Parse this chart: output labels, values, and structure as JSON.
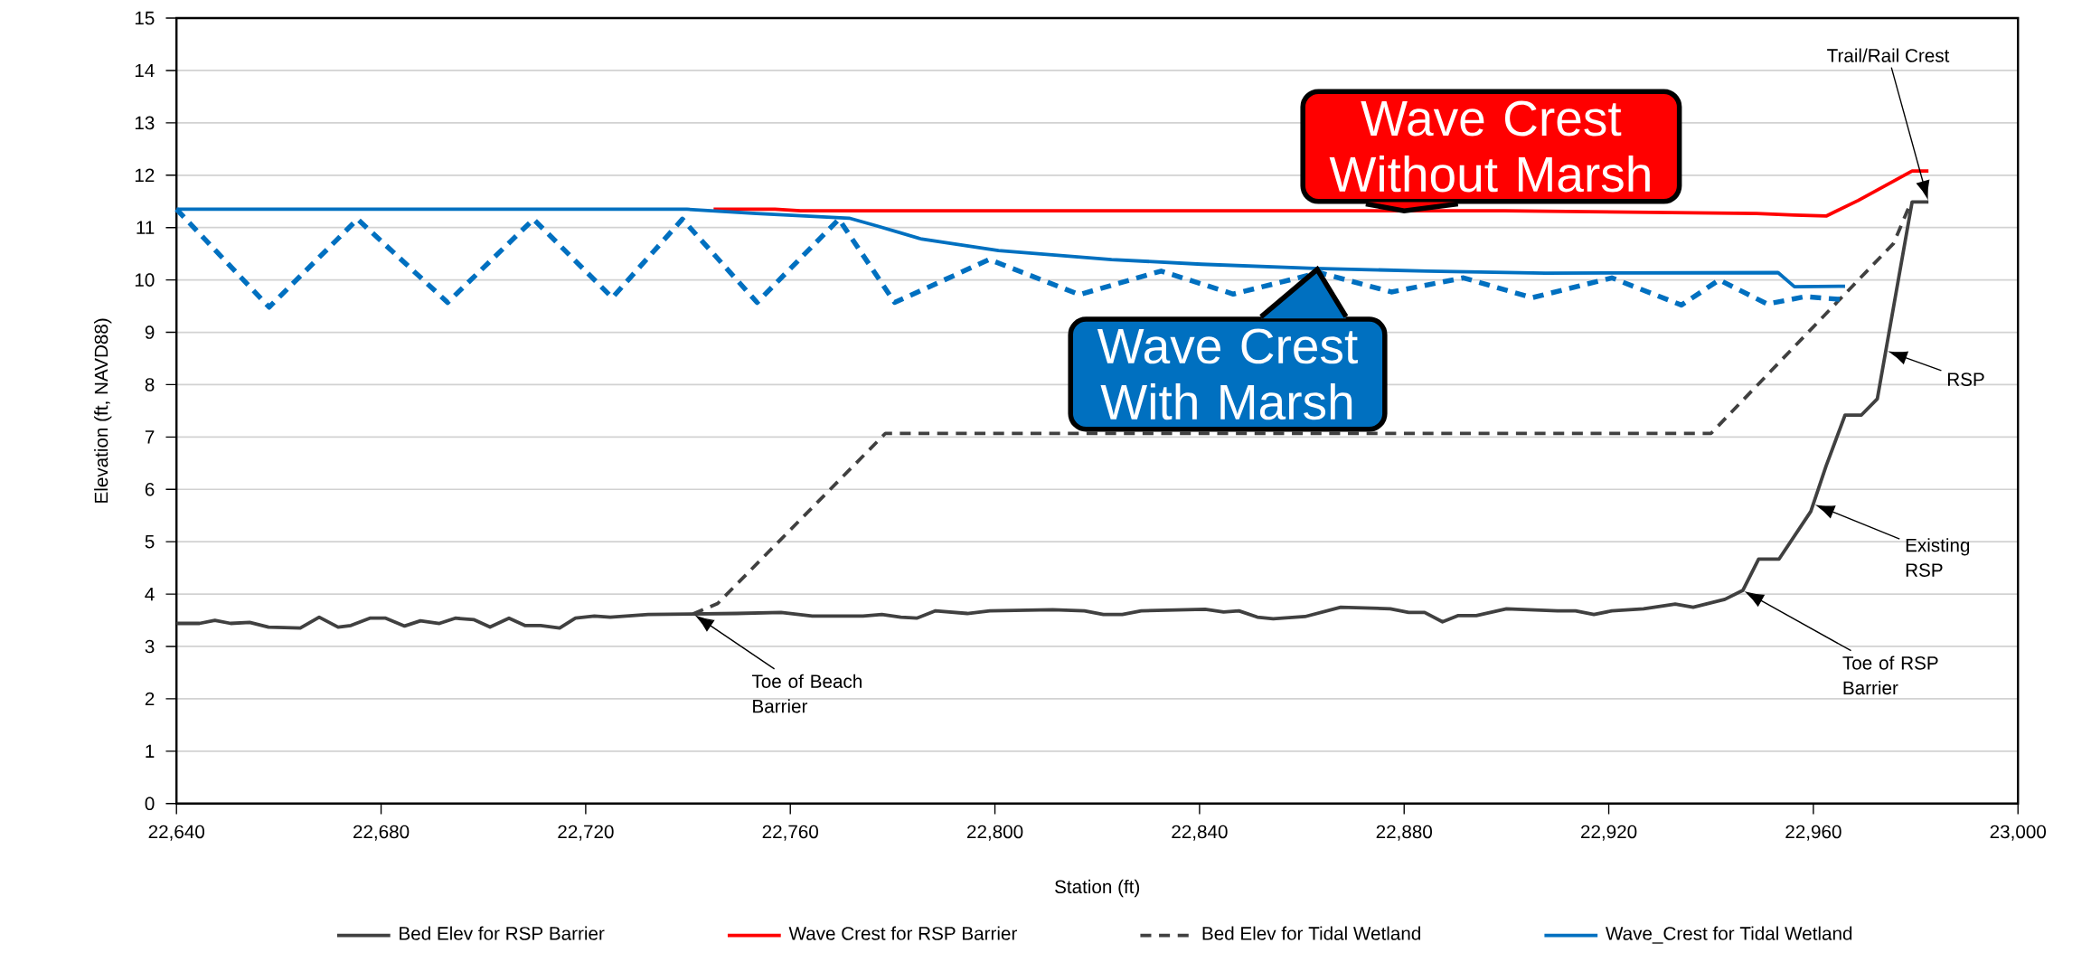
{
  "chart_data": {
    "type": "line",
    "xlabel": "Station (ft)",
    "ylabel": "Elevation (ft, NAVD88)",
    "xlim": [
      22640,
      23000
    ],
    "ylim": [
      0,
      15
    ],
    "xticks": [
      {
        "value": 22640,
        "label": "22,640"
      },
      {
        "value": 22680,
        "label": "22,680"
      },
      {
        "value": 22720,
        "label": "22,720"
      },
      {
        "value": 22760,
        "label": "22,760"
      },
      {
        "value": 22800,
        "label": "22,800"
      },
      {
        "value": 22840,
        "label": "22,840"
      },
      {
        "value": 22880,
        "label": "22,880"
      },
      {
        "value": 22920,
        "label": "22,920"
      },
      {
        "value": 22960,
        "label": "22,960"
      },
      {
        "value": 23000,
        "label": "23,000"
      }
    ],
    "yticks": [
      0,
      1,
      2,
      3,
      4,
      5,
      6,
      7,
      8,
      9,
      10,
      11,
      12,
      13,
      14,
      15
    ],
    "grid": "y",
    "legend": "bottom",
    "series": [
      {
        "name": "Bed Elev for RSP Barrier",
        "color": "#404040",
        "line_style": "solid",
        "x": [
          22640,
          22644.5,
          22647.5,
          22650.6,
          22654.3,
          22658,
          22664.2,
          22667.9,
          22671.6,
          22674.1,
          22677.8,
          22680.9,
          22684.6,
          22687.7,
          22691.4,
          22694.5,
          22698.2,
          22701.3,
          22705,
          22708.1,
          22711.2,
          22714.9,
          22718,
          22721.7,
          22724.8,
          22732.2,
          22749.5,
          22758.2,
          22764.3,
          22774.2,
          22777.9,
          22781.6,
          22784.7,
          22788.4,
          22794.6,
          22799,
          22811.3,
          22817.5,
          22821.2,
          22824.9,
          22828.6,
          22841.1,
          22844.7,
          22847.7,
          22851.3,
          22854.4,
          22860.6,
          22867.6,
          22877.3,
          22880.9,
          22884,
          22887.5,
          22890.6,
          22894.1,
          22900,
          22910,
          22913.5,
          22917.1,
          22920.6,
          22926.8,
          22933,
          22936.5,
          22942.7,
          22946.2,
          22949.3,
          22953.3,
          22959.5,
          22962.5,
          22966.2,
          22969.4,
          22972.5,
          22979.3,
          22982.5
        ],
        "values": [
          3.44,
          3.44,
          3.5,
          3.44,
          3.46,
          3.37,
          3.35,
          3.56,
          3.37,
          3.4,
          3.54,
          3.54,
          3.39,
          3.49,
          3.44,
          3.54,
          3.51,
          3.37,
          3.54,
          3.4,
          3.4,
          3.35,
          3.54,
          3.58,
          3.56,
          3.61,
          3.63,
          3.65,
          3.58,
          3.58,
          3.61,
          3.56,
          3.54,
          3.68,
          3.63,
          3.68,
          3.7,
          3.68,
          3.61,
          3.61,
          3.68,
          3.71,
          3.66,
          3.68,
          3.56,
          3.53,
          3.57,
          3.75,
          3.72,
          3.65,
          3.65,
          3.47,
          3.59,
          3.59,
          3.72,
          3.68,
          3.68,
          3.61,
          3.68,
          3.72,
          3.81,
          3.75,
          3.9,
          4.07,
          4.67,
          4.67,
          5.58,
          6.45,
          7.42,
          7.42,
          7.73,
          11.49,
          11.49
        ]
      },
      {
        "name": "Wave Crest for RSP Barrier",
        "color": "#ff0000",
        "line_style": "solid",
        "x": [
          22745,
          22757,
          22762,
          22899.6,
          22948.9,
          22956.3,
          22962.5,
          22968.8,
          22979.3,
          22982.5
        ],
        "values": [
          11.35,
          11.35,
          11.32,
          11.32,
          11.27,
          11.24,
          11.22,
          11.52,
          12.08,
          12.08
        ]
      },
      {
        "name": "Bed Elev for Tidal Wetland",
        "color": "#404040",
        "line_style": "dashed",
        "x": [
          22741,
          22745.8,
          22778.6,
          22940,
          22975.7,
          22978.8
        ],
        "values": [
          3.62,
          3.82,
          7.07,
          7.07,
          10.7,
          11.42
        ]
      },
      {
        "color": "#0070c0",
        "line_style": "dashed",
        "x": [
          22640,
          22658.1,
          22675.4,
          22693,
          22709.8,
          22725.2,
          22738.9,
          22753.5,
          22769.5,
          22780.4,
          22798.9,
          22816.5,
          22832.5,
          22846.6,
          22863.4,
          22877.5,
          22891.6,
          22905,
          22920.6,
          22934.2,
          22941.6,
          22951,
          22958.3,
          22965.2
        ],
        "values": [
          11.35,
          9.48,
          11.16,
          9.57,
          11.16,
          9.66,
          11.16,
          9.57,
          11.16,
          9.57,
          10.39,
          9.72,
          10.17,
          9.73,
          10.14,
          9.77,
          10.04,
          9.66,
          10.04,
          9.52,
          10.0,
          9.54,
          9.68,
          9.63
        ]
      },
      {
        "name": "Wave_Crest for Tidal Wetland",
        "color": "#0070c0",
        "line_style": "solid",
        "x": [
          22640,
          22739.8,
          22753.4,
          22771.5,
          22777,
          22785.7,
          22800.7,
          22822.8,
          22840.4,
          22862.5,
          22884.6,
          22907.6,
          22953.1,
          22956.3,
          22966.2
        ],
        "values": [
          11.35,
          11.35,
          11.27,
          11.18,
          11.03,
          10.78,
          10.56,
          10.39,
          10.3,
          10.22,
          10.17,
          10.13,
          10.14,
          9.87,
          9.88
        ]
      }
    ],
    "annotations": [
      {
        "text": "Wave Crest Without Marsh",
        "x": 22880,
        "y": 11.32
      },
      {
        "text": "Wave Crest With Marsh",
        "x": 22863,
        "y": 10.2
      },
      "Trail/Rail Crest",
      "RSP",
      "Existing RSP",
      "Toe of RSP Barrier",
      "Toe of Beach Barrier"
    ]
  }
}
